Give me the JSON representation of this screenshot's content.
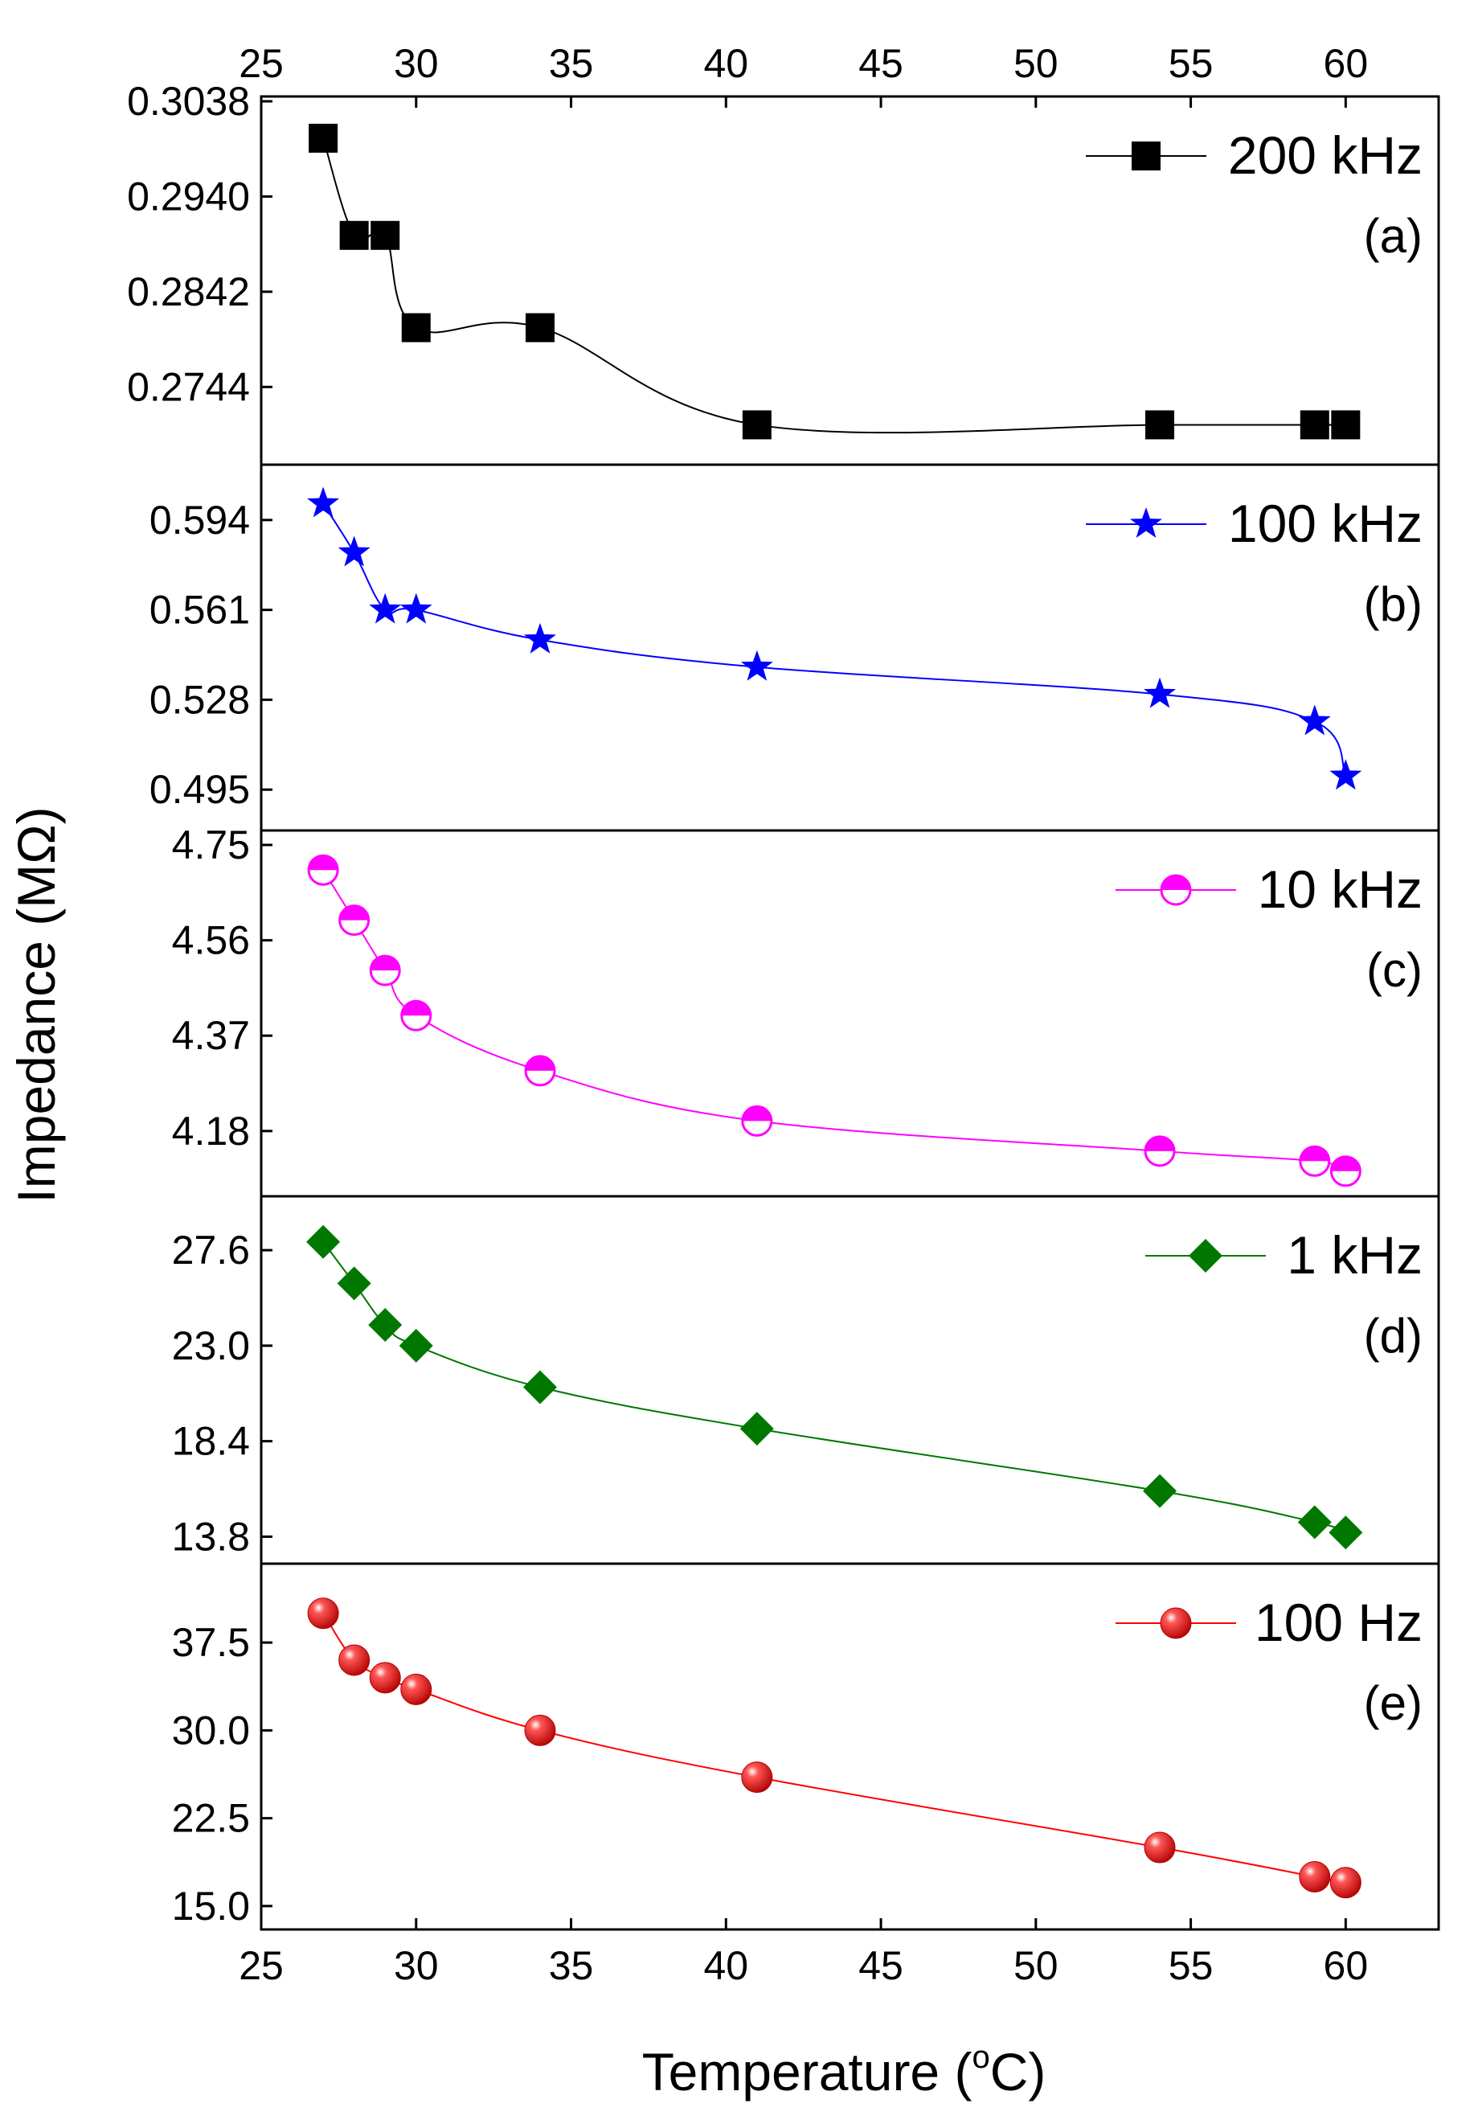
{
  "chart_data": {
    "type": "line",
    "shared_x": {
      "label_prefix": "Temperature (",
      "label_unit_sup": "o",
      "label_suffix": "C)",
      "range": [
        25,
        63
      ],
      "ticks": [
        25,
        30,
        35,
        40,
        45,
        50,
        55,
        60
      ],
      "tick_labels": [
        "25",
        "30",
        "35",
        "40",
        "45",
        "50",
        "55",
        "60"
      ]
    },
    "ylabel": "Impedance (MΩ)",
    "x": [
      27,
      28,
      29,
      30,
      34,
      41,
      54,
      59,
      60
    ],
    "panels": [
      {
        "id": "a",
        "letter": "(a)",
        "legend": "200 kHz",
        "color": "#000000",
        "marker": "square",
        "ylim": [
          0.2664,
          0.3038
        ],
        "yticks": [
          0.2744,
          0.2842,
          0.294,
          0.3038
        ],
        "ytick_labels": [
          "0.2744",
          "0.2842",
          "0.2940",
          "0.3038"
        ],
        "values": [
          0.3,
          0.29,
          0.29,
          0.2805,
          0.2805,
          0.2705,
          0.2705,
          0.2705,
          0.2705
        ]
      },
      {
        "id": "b",
        "letter": "(b)",
        "legend": "100 kHz",
        "color": "#0000ff",
        "marker": "star",
        "ylim": [
          0.48,
          0.609
        ],
        "yticks": [
          0.495,
          0.528,
          0.561,
          0.594
        ],
        "ytick_labels": [
          "0.495",
          "0.528",
          "0.561",
          "0.594"
        ],
        "values": [
          0.6,
          0.582,
          0.561,
          0.561,
          0.55,
          0.54,
          0.53,
          0.52,
          0.5
        ]
      },
      {
        "id": "c",
        "letter": "(c)",
        "legend": "10 kHz",
        "color": "#ff00ff",
        "marker": "half-circle",
        "ylim": [
          4.05,
          4.75
        ],
        "yticks": [
          4.18,
          4.37,
          4.56,
          4.75
        ],
        "ytick_labels": [
          "4.18",
          "4.37",
          "4.56",
          "4.75"
        ],
        "values": [
          4.7,
          4.6,
          4.5,
          4.41,
          4.3,
          4.2,
          4.14,
          4.12,
          4.1
        ]
      },
      {
        "id": "d",
        "letter": "(d)",
        "legend": "1 kHz",
        "color": "#007800",
        "marker": "diamond",
        "ylim": [
          12.5,
          29.5
        ],
        "yticks": [
          13.8,
          18.4,
          23.0,
          27.6
        ],
        "ytick_labels": [
          "13.8",
          "18.4",
          "23.0",
          "27.6"
        ],
        "values": [
          28.0,
          26.0,
          24.0,
          23.0,
          21.0,
          19.0,
          16.0,
          14.5,
          14.0
        ]
      },
      {
        "id": "e",
        "letter": "(e)",
        "legend": "100 Hz",
        "color": "#ff0000",
        "marker": "sphere",
        "ylim": [
          13.0,
          43.0
        ],
        "yticks": [
          15.0,
          22.5,
          30.0,
          37.5
        ],
        "ytick_labels": [
          "15.0",
          "22.5",
          "30.0",
          "37.5"
        ],
        "values": [
          40.0,
          36.0,
          34.5,
          33.5,
          30.0,
          26.0,
          20.0,
          17.5,
          17.0
        ]
      }
    ]
  }
}
